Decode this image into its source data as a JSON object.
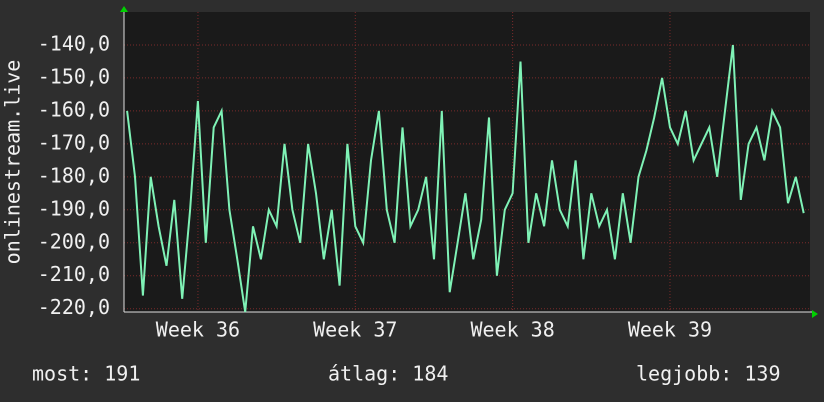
{
  "chart_data": {
    "type": "line",
    "y_label": "onlinestream.live",
    "x": [
      35.55,
      35.6,
      35.65,
      35.7,
      35.75,
      35.8,
      35.85,
      35.9,
      35.95,
      36.0,
      36.05,
      36.1,
      36.15,
      36.2,
      36.25,
      36.3,
      36.35,
      36.4,
      36.45,
      36.5,
      36.55,
      36.6,
      36.65,
      36.7,
      36.75,
      36.8,
      36.85,
      36.9,
      36.95,
      37.0,
      37.05,
      37.1,
      37.15,
      37.2,
      37.25,
      37.3,
      37.35,
      37.4,
      37.45,
      37.5,
      37.55,
      37.6,
      37.65,
      37.7,
      37.75,
      37.8,
      37.85,
      37.9,
      37.95,
      38.0,
      38.05,
      38.1,
      38.15,
      38.2,
      38.25,
      38.3,
      38.35,
      38.4,
      38.45,
      38.5,
      38.55,
      38.6,
      38.65,
      38.7,
      38.75,
      38.8,
      38.85,
      38.9,
      38.95,
      39.0,
      39.05,
      39.1,
      39.15,
      39.2,
      39.25,
      39.3,
      39.35,
      39.4,
      39.45,
      39.5,
      39.55,
      39.6,
      39.65,
      39.7,
      39.75,
      39.8,
      39.85
    ],
    "values": [
      -160,
      -180,
      -216,
      -180,
      -195,
      -207,
      -187,
      -217,
      -190,
      -157,
      -200,
      -165,
      -160,
      -190,
      -205,
      -221,
      -195,
      -205,
      -190,
      -195,
      -170,
      -190,
      -200,
      -170,
      -185,
      -205,
      -190,
      -213,
      -170,
      -195,
      -200,
      -175,
      -160,
      -190,
      -200,
      -165,
      -195,
      -190,
      -180,
      -205,
      -160,
      -215,
      -200,
      -185,
      -205,
      -193,
      -162,
      -210,
      -190,
      -185,
      -145,
      -200,
      -185,
      -195,
      -175,
      -190,
      -195,
      -175,
      -205,
      -185,
      -195,
      -190,
      -205,
      -185,
      -200,
      -180,
      -172,
      -162,
      -150,
      -165,
      -170,
      -160,
      -175,
      -170,
      -165,
      -180,
      -160,
      -140,
      -187,
      -170,
      -165,
      -175,
      -160,
      -165,
      -188,
      -180,
      -191
    ],
    "color": "#7ff2b6",
    "xlim": [
      35.53,
      39.89
    ],
    "xticks": [
      {
        "value": 36,
        "label": "Week 36"
      },
      {
        "value": 37,
        "label": "Week 37"
      },
      {
        "value": 38,
        "label": "Week 38"
      },
      {
        "value": 39,
        "label": "Week 39"
      }
    ],
    "ylim": [
      -221,
      -130
    ],
    "yticks": [
      {
        "value": -220,
        "label": "-220,0"
      },
      {
        "value": -210,
        "label": "-210,0"
      },
      {
        "value": -200,
        "label": "-200,0"
      },
      {
        "value": -190,
        "label": "-190,0"
      },
      {
        "value": -180,
        "label": "-180,0"
      },
      {
        "value": -170,
        "label": "-170,0"
      },
      {
        "value": -160,
        "label": "-160,0"
      },
      {
        "value": -150,
        "label": "-150,0"
      },
      {
        "value": -140,
        "label": "-140,0"
      }
    ],
    "grid": true,
    "stats": [
      "most: 191",
      "átlag: 184",
      "legjobb: 139"
    ]
  }
}
